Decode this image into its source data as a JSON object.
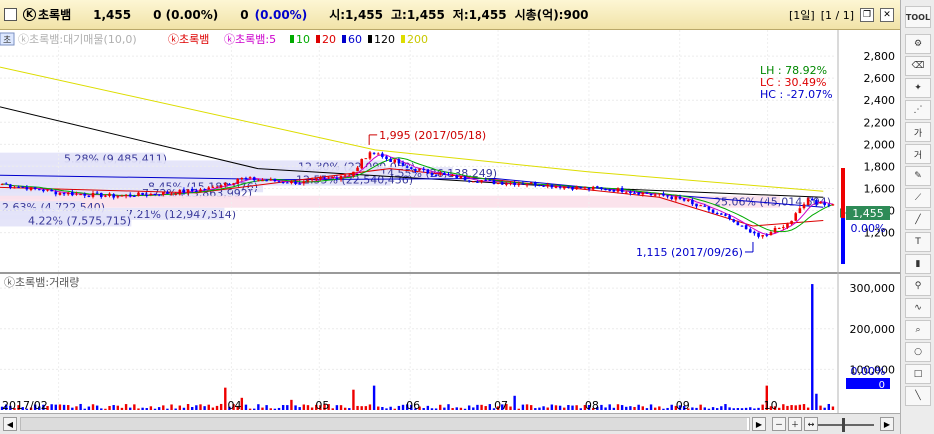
{
  "header": {
    "stock_name": "초록뱀",
    "price": "1,455",
    "change": "0 (0.00%)",
    "volume_change": "0",
    "volume_change_pct": "(0.00%)",
    "open": "시:1,455",
    "high": "고:1,455",
    "low": "저:1,455",
    "market_cap": "시총(억):900",
    "period": "[1일]",
    "page": "[1 / 1]"
  },
  "legend": {
    "price_title": "ⓚ초록뱀:대기매물(10,0)",
    "price_name": "ⓚ초록뱀",
    "ma_prefix": "ⓚ초록뱀:5",
    "ma_items": [
      {
        "label": "10",
        "color": "#00aa00"
      },
      {
        "label": "20",
        "color": "#dd0000"
      },
      {
        "label": "60",
        "color": "#0000cc"
      },
      {
        "label": "120",
        "color": "#000000"
      },
      {
        "label": "200",
        "color": "#dddd00"
      }
    ],
    "ma5_color": "#cc00cc",
    "volume_title": "ⓚ초록뱀:거래량"
  },
  "stats": {
    "lh": "LH :  78.92%",
    "lc": "LC :  30.49%",
    "hc": "HC : -27.07%"
  },
  "chart_data": {
    "type": "candlestick",
    "price_axis": {
      "min": 1000,
      "max": 3000,
      "ticks": [
        "2,800",
        "2,600",
        "2,400",
        "2,200",
        "2,000",
        "1,800",
        "1,600",
        "1,400",
        "1,200"
      ]
    },
    "volume_axis": {
      "min": 0,
      "max": 320000,
      "ticks": [
        "300,000",
        "200,000",
        "100,000"
      ]
    },
    "x_ticks": [
      "2017/02",
      "04",
      "05",
      "06",
      "07",
      "08",
      "09",
      "10"
    ],
    "current_price_label": "1,455",
    "right_pct_label": "0.00%",
    "volume_pct_label": "0.00%",
    "volume_current_label": "0",
    "annotations": [
      {
        "text": "1,995 (2017/05/18)",
        "date": "2017-05-18",
        "price": 1995,
        "kind": "high"
      },
      {
        "text": "1,115 (2017/09/26)",
        "date": "2017-09-26",
        "price": 1115,
        "kind": "low"
      }
    ],
    "volume_profile": [
      {
        "text": "5.28% (9,485,411)",
        "price": 1870,
        "pct": 5.28
      },
      {
        "text": "12.30% (22,090,050)",
        "price": 1800,
        "pct": 12.3
      },
      {
        "text": "14.55% (26,138,249)",
        "price": 1740,
        "pct": 14.55
      },
      {
        "text": "12.55% (22,540,436)",
        "price": 1680,
        "pct": 12.55
      },
      {
        "text": "8.45% (15,183,076)",
        "price": 1620,
        "pct": 8.45
      },
      {
        "text": "7.72% (13,863,992)",
        "price": 1560,
        "pct": 7.72
      },
      {
        "text": "25.06% (45,014,504)",
        "price": 1480,
        "pct": 25.06
      },
      {
        "text": "2.63% (4,722,540)",
        "price": 1430,
        "pct": 2.63
      },
      {
        "text": "7.21% (12,947,514)",
        "price": 1370,
        "pct": 7.21
      },
      {
        "text": "4.22% (7,575,715)",
        "price": 1310,
        "pct": 4.22
      }
    ],
    "anchors": [
      {
        "date": "2017-01-12",
        "price": 1640
      },
      {
        "date": "2017-02-01",
        "price": 1560
      },
      {
        "date": "2017-02-20",
        "price": 1530
      },
      {
        "date": "2017-03-10",
        "price": 1560
      },
      {
        "date": "2017-03-22",
        "price": 1590
      },
      {
        "date": "2017-04-03",
        "price": 1690
      },
      {
        "date": "2017-04-24",
        "price": 1650
      },
      {
        "date": "2017-05-10",
        "price": 1730
      },
      {
        "date": "2017-05-18",
        "price": 1935
      },
      {
        "date": "2017-05-29",
        "price": 1790
      },
      {
        "date": "2017-06-12",
        "price": 1715
      },
      {
        "date": "2017-06-28",
        "price": 1655
      },
      {
        "date": "2017-07-10",
        "price": 1645
      },
      {
        "date": "2017-07-27",
        "price": 1605
      },
      {
        "date": "2017-08-10",
        "price": 1585
      },
      {
        "date": "2017-08-28",
        "price": 1520
      },
      {
        "date": "2017-09-11",
        "price": 1380
      },
      {
        "date": "2017-09-26",
        "price": 1160
      },
      {
        "date": "2017-10-05",
        "price": 1265
      },
      {
        "date": "2017-10-12",
        "price": 1490
      },
      {
        "date": "2017-10-20",
        "price": 1455
      }
    ],
    "volume_spikes": [
      {
        "date": "2017-03-29",
        "volume": 55000
      },
      {
        "date": "2017-04-04",
        "volume": 30000
      },
      {
        "date": "2017-04-20",
        "volume": 25000
      },
      {
        "date": "2017-05-11",
        "volume": 50000
      },
      {
        "date": "2017-05-18",
        "volume": 60000
      },
      {
        "date": "2017-07-05",
        "volume": 35000
      },
      {
        "date": "2017-09-28",
        "volume": 60000
      },
      {
        "date": "2017-10-13",
        "volume": 310000
      },
      {
        "date": "2017-10-16",
        "volume": 40000
      }
    ],
    "ma_paths": {
      "ma200": [
        {
          "date": "2017-01-12",
          "price": 2700
        },
        {
          "date": "2017-05-20",
          "price": 1950
        },
        {
          "date": "2017-08-01",
          "price": 1750
        },
        {
          "date": "2017-10-20",
          "price": 1575
        }
      ],
      "ma120": [
        {
          "date": "2017-01-12",
          "price": 2340
        },
        {
          "date": "2017-04-10",
          "price": 1780
        },
        {
          "date": "2017-07-20",
          "price": 1620
        },
        {
          "date": "2017-10-20",
          "price": 1520
        }
      ],
      "ma60": [
        {
          "date": "2017-01-12",
          "price": 1720
        },
        {
          "date": "2017-04-20",
          "price": 1680
        },
        {
          "date": "2017-06-30",
          "price": 1690
        },
        {
          "date": "2017-08-20",
          "price": 1560
        },
        {
          "date": "2017-10-20",
          "price": 1430
        }
      ],
      "ma20": [
        {
          "date": "2017-01-12",
          "price": 1610
        },
        {
          "date": "2017-03-20",
          "price": 1560
        },
        {
          "date": "2017-05-25",
          "price": 1780
        },
        {
          "date": "2017-07-10",
          "price": 1650
        },
        {
          "date": "2017-08-25",
          "price": 1520
        },
        {
          "date": "2017-09-26",
          "price": 1260
        },
        {
          "date": "2017-10-20",
          "price": 1310
        }
      ]
    }
  }
}
